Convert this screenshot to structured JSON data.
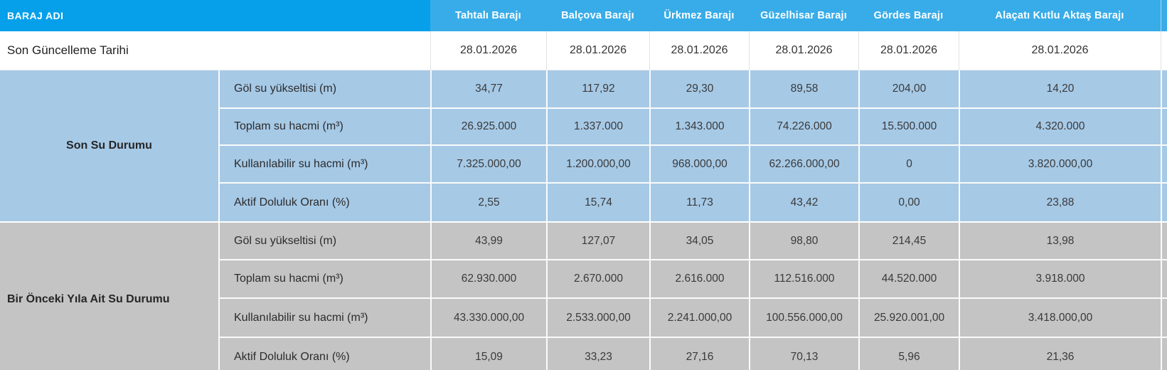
{
  "table": {
    "corner_header": "BARAJ ADI",
    "columns": [
      "Tahtalı Barajı",
      "Balçova Barajı",
      "Ürkmez Barajı",
      "Güzelhisar Barajı",
      "Gördes Barajı",
      "Alaçatı Kutlu Aktaş Barajı"
    ],
    "update_row": {
      "label": "Son Güncelleme Tarihi",
      "values": [
        "28.01.2026",
        "28.01.2026",
        "28.01.2026",
        "28.01.2026",
        "28.01.2026",
        "28.01.2026"
      ]
    },
    "sections": [
      {
        "label": "Son Su Durumu",
        "rows": [
          {
            "label": "Göl su yükseltisi (m)",
            "values": [
              "34,77",
              "117,92",
              "29,30",
              "89,58",
              "204,00",
              "14,20"
            ]
          },
          {
            "label": "Toplam su hacmi (m³)",
            "values": [
              "26.925.000",
              "1.337.000",
              "1.343.000",
              "74.226.000",
              "15.500.000",
              "4.320.000"
            ]
          },
          {
            "label": "Kullanılabilir su hacmi (m³)",
            "values": [
              "7.325.000,00",
              "1.200.000,00",
              "968.000,00",
              "62.266.000,00",
              "0",
              "3.820.000,00"
            ]
          },
          {
            "label": "Aktif Doluluk Oranı (%)",
            "values": [
              "2,55",
              "15,74",
              "11,73",
              "43,42",
              "0,00",
              "23,88"
            ]
          }
        ]
      },
      {
        "label": "Bir Önceki Yıla Ait Su Durumu",
        "rows": [
          {
            "label": "Göl su yükseltisi (m)",
            "values": [
              "43,99",
              "127,07",
              "34,05",
              "98,80",
              "214,45",
              "13,98"
            ]
          },
          {
            "label": "Toplam su hacmi (m³)",
            "values": [
              "62.930.000",
              "2.670.000",
              "2.616.000",
              "112.516.000",
              "44.520.000",
              "3.918.000"
            ]
          },
          {
            "label": "Kullanılabilir su hacmi (m³)",
            "values": [
              "43.330.000,00",
              "2.533.000,00",
              "2.241.000,00",
              "100.556.000,00",
              "25.920.001,00",
              "3.418.000,00"
            ]
          },
          {
            "label": "Aktif Doluluk Oranı (%)",
            "values": [
              "15,09",
              "33,23",
              "27,16",
              "70,13",
              "5,96",
              "21,36"
            ]
          }
        ]
      }
    ]
  },
  "colors": {
    "header_left_bg": "#06a0ea",
    "header_columns_bg": "#38ace8",
    "header_text": "#ffffff",
    "date_row_bg": "#ffffff",
    "current_section_bg": "#a6c9e6",
    "previous_section_bg": "#c4c4c4",
    "body_text": "#333333"
  }
}
